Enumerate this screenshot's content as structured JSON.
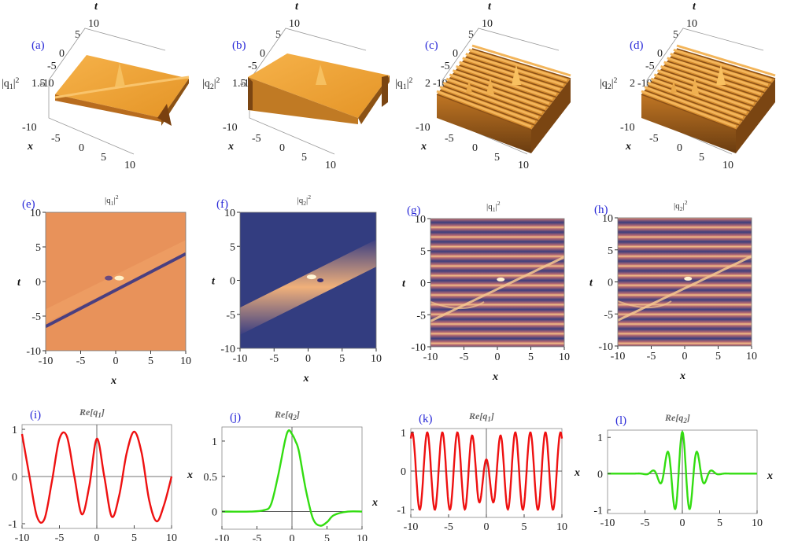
{
  "figure": {
    "panels_3d": [
      {
        "label": "(a)",
        "zlabel": "|q1|²",
        "ztick": "1.5",
        "xlabel": "x",
        "tlabel": "t",
        "x_ticks": [
          "-10",
          "-5",
          "0",
          "5",
          "10"
        ],
        "t_ticks": [
          "-10",
          "-5",
          "0",
          "5",
          "10"
        ],
        "style": "soliton-a"
      },
      {
        "label": "(b)",
        "zlabel": "|q2|²",
        "ztick": "1.5",
        "xlabel": "x",
        "tlabel": "t",
        "x_ticks": [
          "-10",
          "-5",
          "0",
          "5",
          "10"
        ],
        "t_ticks": [
          "-10",
          "-5",
          "0",
          "5",
          "10"
        ],
        "style": "soliton-b"
      },
      {
        "label": "(c)",
        "zlabel": "|q1|²",
        "ztick": "2",
        "xlabel": "x",
        "tlabel": "t",
        "x_ticks": [
          "-10",
          "-5",
          "0",
          "5",
          "10"
        ],
        "t_ticks": [
          "-10",
          "-5",
          "0",
          "5",
          "10"
        ],
        "style": "periodic"
      },
      {
        "label": "(d)",
        "zlabel": "|q2|²",
        "ztick": "2",
        "xlabel": "x",
        "tlabel": "t",
        "x_ticks": [
          "-10",
          "-5",
          "0",
          "5",
          "10"
        ],
        "t_ticks": [
          "-10",
          "-5",
          "0",
          "5",
          "10"
        ],
        "style": "periodic"
      }
    ],
    "panels_density": [
      {
        "label": "(e)",
        "title": "|q1|²",
        "xlabel": "x",
        "ylabel": "t",
        "type": "dark-soliton"
      },
      {
        "label": "(f)",
        "title": "|q2|²",
        "xlabel": "x",
        "ylabel": "t",
        "type": "bright-soliton"
      },
      {
        "label": "(g)",
        "title": "|q1|²",
        "xlabel": "x",
        "ylabel": "t",
        "type": "stripes"
      },
      {
        "label": "(h)",
        "title": "|q2|²",
        "xlabel": "x",
        "ylabel": "t",
        "type": "stripes"
      }
    ],
    "density_ticks": [
      "-10",
      "-5",
      "0",
      "5",
      "10"
    ],
    "colors": {
      "curve_red": "#ee1111",
      "curve_green": "#33dd11",
      "orange": "#e8925a",
      "navy": "#333d80",
      "label_blue": "#2a2ad8"
    }
  },
  "chart_data": [
    {
      "type": "line",
      "label": "(i)",
      "title": "Re[q1]",
      "xlabel": "x",
      "xlim": [
        -10,
        10
      ],
      "ylim": [
        -1.1,
        1.1
      ],
      "x_ticks": [
        "-10",
        "-5",
        "0",
        "5",
        "10"
      ],
      "y_ticks": [
        "1",
        "0",
        "-1"
      ],
      "color": "#ee1111",
      "x": [
        -10,
        -9,
        -8,
        -7,
        -6,
        -5,
        -4,
        -3,
        -2,
        -1,
        0,
        1,
        2,
        3,
        4,
        5,
        6,
        7,
        8,
        9,
        10
      ],
      "y": [
        0.9,
        0.0,
        -0.85,
        -0.9,
        -0.1,
        0.8,
        0.85,
        0.0,
        -0.8,
        -0.2,
        0.8,
        0.0,
        -0.85,
        -0.4,
        0.5,
        0.95,
        0.5,
        -0.5,
        -0.95,
        -0.6,
        0.0
      ]
    },
    {
      "type": "line",
      "label": "(j)",
      "title": "Re[q2]",
      "xlabel": "x",
      "xlim": [
        -10,
        10
      ],
      "ylim": [
        -0.25,
        1.2
      ],
      "x_ticks": [
        "-10",
        "-5",
        "0",
        "5",
        "10"
      ],
      "y_ticks": [
        "1",
        "0.5",
        "0"
      ],
      "color": "#33dd11",
      "x": [
        -10,
        -6,
        -4,
        -3,
        -2,
        -1,
        -0.5,
        0,
        0.5,
        1,
        2,
        3,
        4,
        5,
        6,
        8,
        10
      ],
      "y": [
        0.0,
        0.0,
        0.02,
        0.1,
        0.5,
        1.0,
        1.15,
        1.1,
        1.0,
        0.85,
        0.3,
        -0.1,
        -0.2,
        -0.15,
        -0.05,
        0.0,
        0.0
      ]
    },
    {
      "type": "line",
      "label": "(k)",
      "title": "Re[q1]",
      "xlabel": "x",
      "xlim": [
        -10,
        10
      ],
      "ylim": [
        -1.2,
        1.1
      ],
      "x_ticks": [
        "-10",
        "-5",
        "0",
        "5",
        "10"
      ],
      "y_ticks": [
        "1",
        "0",
        "-1"
      ],
      "color": "#ee1111",
      "wave": {
        "kind": "osc-red",
        "freq": 3.14,
        "amp": 1.0
      }
    },
    {
      "type": "line",
      "label": "(l)",
      "title": "Re[q2]",
      "xlabel": "x",
      "xlim": [
        -10,
        10
      ],
      "ylim": [
        -1.1,
        1.2
      ],
      "x_ticks": [
        "-10",
        "-5",
        "0",
        "5",
        "10"
      ],
      "y_ticks": [
        "1",
        "0",
        "-1"
      ],
      "color": "#33dd11",
      "wave": {
        "kind": "packet-green",
        "freq": 3.14,
        "amp": 1.15
      }
    }
  ]
}
